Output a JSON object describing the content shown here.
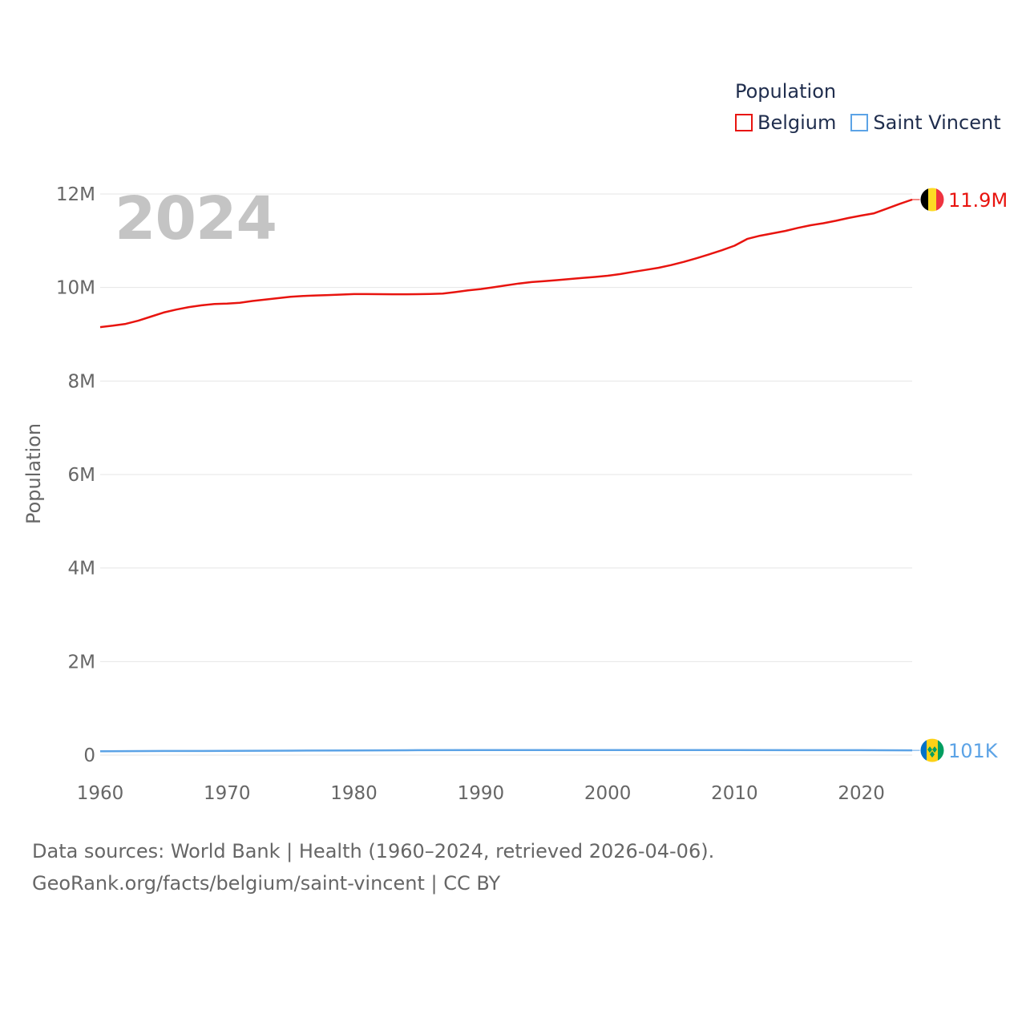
{
  "chart_data": {
    "type": "line",
    "title": "",
    "legend_title": "Population",
    "year_label": "2024",
    "ylabel": "Population",
    "xlabel": "",
    "xlim": [
      1960,
      2024
    ],
    "ylim": [
      0,
      12000000
    ],
    "x_ticks": [
      1960,
      1970,
      1980,
      1990,
      2000,
      2010,
      2020
    ],
    "x_tick_labels": [
      "1960",
      "1970",
      "1980",
      "1990",
      "2000",
      "2010",
      "2020"
    ],
    "y_ticks": [
      0,
      2000000,
      4000000,
      6000000,
      8000000,
      10000000,
      12000000
    ],
    "y_tick_labels": [
      "0",
      "2M",
      "4M",
      "6M",
      "8M",
      "10M",
      "12M"
    ],
    "grid": true,
    "legend_position": "top-right",
    "series": [
      {
        "name": "Belgium",
        "color": "#e8140f",
        "end_label": "11.9M",
        "icon": "belgium-flag-icon",
        "x": [
          1960,
          1961,
          1962,
          1963,
          1964,
          1965,
          1966,
          1967,
          1968,
          1969,
          1970,
          1971,
          1972,
          1973,
          1974,
          1975,
          1976,
          1977,
          1978,
          1979,
          1980,
          1981,
          1982,
          1983,
          1984,
          1985,
          1986,
          1987,
          1988,
          1989,
          1990,
          1991,
          1992,
          1993,
          1994,
          1995,
          1996,
          1997,
          1998,
          1999,
          2000,
          2001,
          2002,
          2003,
          2004,
          2005,
          2006,
          2007,
          2008,
          2009,
          2010,
          2011,
          2012,
          2013,
          2014,
          2015,
          2016,
          2017,
          2018,
          2019,
          2020,
          2021,
          2022,
          2023,
          2024
        ],
        "values": [
          9153000,
          9184000,
          9221000,
          9290000,
          9378000,
          9464000,
          9528000,
          9581000,
          9619000,
          9646000,
          9656000,
          9673000,
          9711000,
          9742000,
          9772000,
          9801000,
          9818000,
          9830000,
          9839000,
          9848000,
          9859000,
          9859000,
          9857000,
          9856000,
          9855000,
          9858000,
          9862000,
          9870000,
          9902000,
          9938000,
          9967000,
          10004000,
          10045000,
          10085000,
          10116000,
          10137000,
          10157000,
          10181000,
          10203000,
          10226000,
          10251000,
          10287000,
          10333000,
          10376000,
          10421000,
          10479000,
          10548000,
          10625000,
          10710000,
          10796000,
          10895000,
          11038000,
          11107000,
          11159000,
          11209000,
          11275000,
          11331000,
          11375000,
          11427000,
          11488000,
          11539000,
          11587000,
          11686000,
          11788000,
          11880000
        ]
      },
      {
        "name": "Saint Vincent",
        "color": "#5ca3e6",
        "end_label": "101K",
        "icon": "saint-vincent-flag-icon",
        "x": [
          1960,
          1965,
          1970,
          1975,
          1980,
          1985,
          1990,
          1995,
          2000,
          2005,
          2010,
          2015,
          2020,
          2024
        ],
        "values": [
          81000,
          87000,
          90000,
          95000,
          100000,
          104000,
          107000,
          108000,
          108000,
          108000,
          108000,
          105000,
          104000,
          101000
        ]
      }
    ]
  },
  "source": {
    "line1": "Data sources: World Bank | Health (1960–2024, retrieved 2026-04-06).",
    "line2": "GeoRank.org/facts/belgium/saint-vincent | CC BY"
  }
}
